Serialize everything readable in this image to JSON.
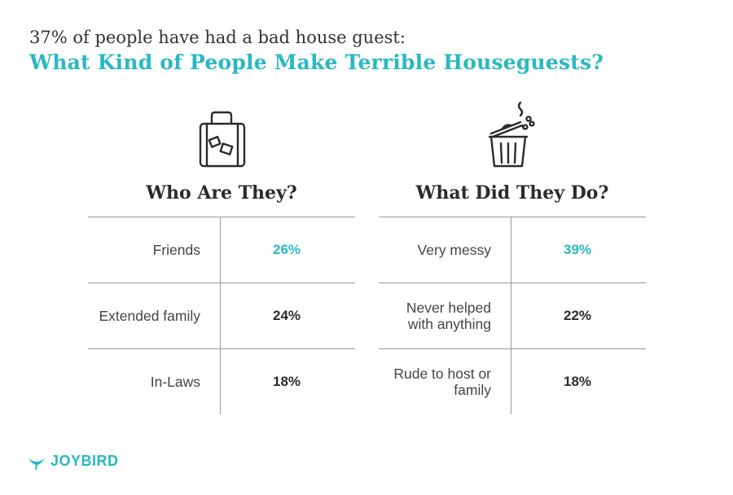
{
  "header": {
    "subtitle": "37% of people have had a bad house guest:",
    "title": "What Kind of People Make Terrible Houseguests?"
  },
  "colors": {
    "accent": "#29b8c3",
    "text": "#333333",
    "rule": "#9a9a9a"
  },
  "left_panel": {
    "icon": "suitcase-icon",
    "heading": "Who Are They?",
    "rows": [
      {
        "label": "Friends",
        "value": "26%",
        "highlight": true
      },
      {
        "label": "Extended family",
        "value": "24%",
        "highlight": false
      },
      {
        "label": "In-Laws",
        "value": "18%",
        "highlight": false
      }
    ]
  },
  "right_panel": {
    "icon": "trash-can-icon",
    "heading": "What Did They Do?",
    "rows": [
      {
        "label": "Very messy",
        "value": "39%",
        "highlight": true
      },
      {
        "label": "Never helped with anything",
        "value": "22%",
        "highlight": false
      },
      {
        "label": "Rude to host or family",
        "value": "18%",
        "highlight": false
      }
    ]
  },
  "logo": {
    "text": "JOYBIRD",
    "icon": "joybird-bird-icon"
  },
  "chart_data": [
    {
      "type": "table",
      "title": "Who Are They?",
      "categories": [
        "Friends",
        "Extended family",
        "In-Laws"
      ],
      "values": [
        26,
        24,
        18
      ]
    },
    {
      "type": "table",
      "title": "What Did They Do?",
      "categories": [
        "Very messy",
        "Never helped with anything",
        "Rude to host or family"
      ],
      "values": [
        39,
        22,
        18
      ]
    }
  ]
}
